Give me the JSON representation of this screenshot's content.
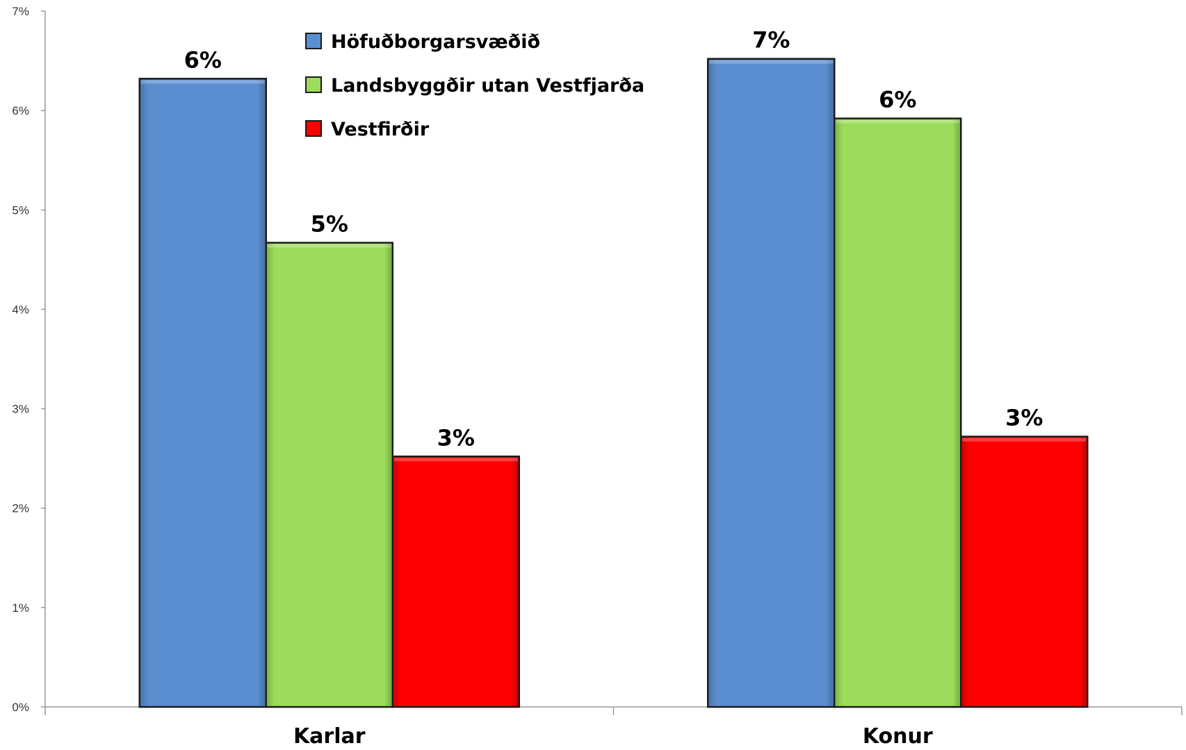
{
  "chart_data": {
    "type": "bar",
    "title": "",
    "xlabel": "",
    "ylabel": "",
    "categories": [
      "Karlar",
      "Konur"
    ],
    "ylim": [
      0,
      7
    ],
    "yticks": [
      "0%",
      "1%",
      "2%",
      "3%",
      "4%",
      "5%",
      "6%",
      "7%"
    ],
    "legend_position": "top-left",
    "series": [
      {
        "name": "Höfuðborgarsvæðið",
        "color": "#5A8ED0",
        "values": [
          6.32,
          6.52
        ],
        "labels": [
          "6%",
          "7%"
        ]
      },
      {
        "name": "Landsbyggðir  utan Vestfjarða",
        "color": "#9BDD5A",
        "values": [
          4.67,
          5.92
        ],
        "labels": [
          "5%",
          "6%"
        ]
      },
      {
        "name": "Vestfirðir",
        "color": "#FF0000",
        "values": [
          2.52,
          2.72
        ],
        "labels": [
          "3%",
          "3%"
        ]
      }
    ]
  }
}
